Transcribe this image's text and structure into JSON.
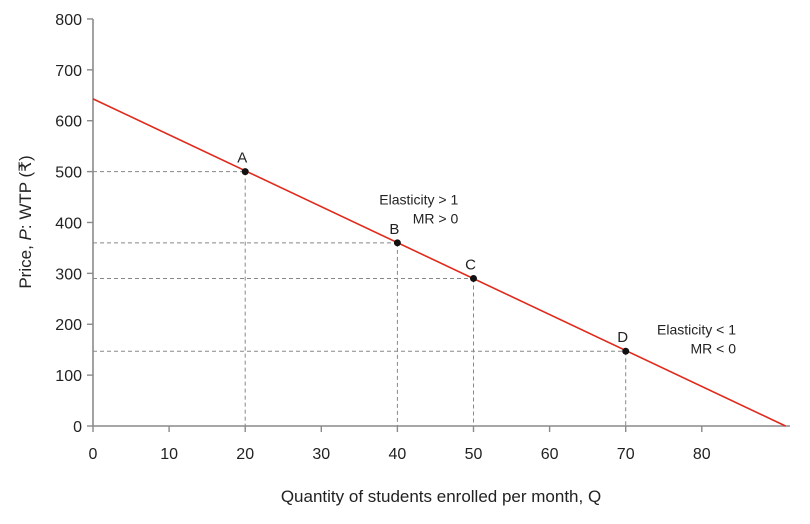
{
  "chart_data": {
    "type": "line",
    "title": "",
    "xlabel": "Quantity of students enrolled per month, Q",
    "ylabel_parts": [
      "Price, ",
      "P",
      ": WTP (₹)"
    ],
    "xlim": [
      0,
      91
    ],
    "ylim": [
      0,
      800
    ],
    "x_ticks": [
      0,
      10,
      20,
      30,
      40,
      50,
      60,
      70,
      80
    ],
    "y_ticks": [
      0,
      100,
      200,
      300,
      400,
      500,
      600,
      700,
      800
    ],
    "grid": false,
    "series": [
      {
        "points": [
          [
            0,
            643
          ],
          [
            91,
            0
          ]
        ],
        "color": "#e0291b"
      }
    ],
    "points": [
      {
        "label": "A",
        "x": 20,
        "y": 500
      },
      {
        "label": "B",
        "x": 40,
        "y": 360
      },
      {
        "label": "C",
        "x": 50,
        "y": 290
      },
      {
        "label": "D",
        "x": 70,
        "y": 147
      }
    ],
    "annotations": [
      {
        "lines": [
          "Elasticity > 1",
          "MR > 0"
        ],
        "x": 48,
        "y": 435
      },
      {
        "lines": [
          "Elasticity < 1",
          "MR < 0"
        ],
        "x": 84.5,
        "y": 180
      }
    ]
  }
}
